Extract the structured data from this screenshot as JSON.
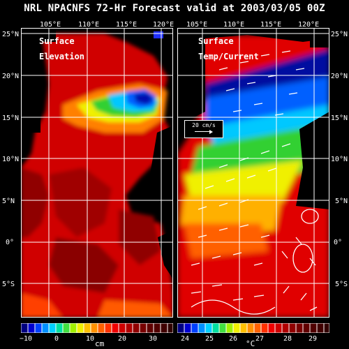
{
  "title": "NRL NPACNFS 72-Hr Forecast valid at 2003/03/05 00Z",
  "top_ticks": [
    "105°E",
    "110°E",
    "115°E",
    "120°E"
  ],
  "lat_ticks": [
    "25°N",
    "20°N",
    "15°N",
    "10°N",
    "5°N",
    "0°",
    "5°S"
  ],
  "panel_left": {
    "title1": "Surface",
    "title2": "Elevation",
    "unit": "cm",
    "ticks": [
      "−10",
      "0",
      "10",
      "20",
      "30"
    ]
  },
  "panel_right": {
    "title1": "Surface",
    "title2": "Temp/Current",
    "unit": "°C",
    "ticks": [
      "24",
      "25",
      "26",
      "27",
      "28",
      "29"
    ]
  },
  "current_legend": "20 cm/s",
  "colors": {
    "red": "#e00000",
    "dark_red": "#800000",
    "blue": "#0020c0",
    "cyan": "#00c8ff",
    "green": "#30d030",
    "yellow": "#f0f000",
    "orange": "#ff8000"
  }
}
